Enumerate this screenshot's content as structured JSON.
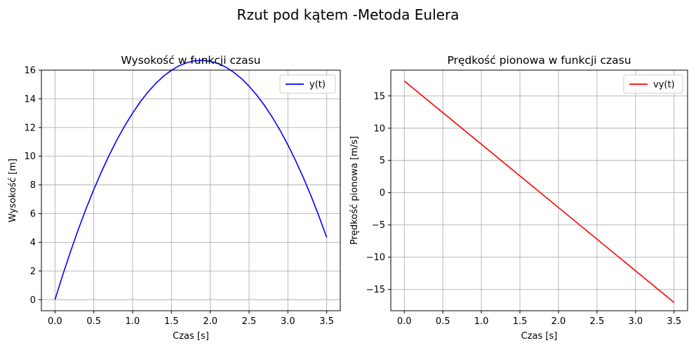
{
  "figure": {
    "suptitle": "Rzut pod kątem -Metoda Eulera"
  },
  "chart_data": [
    {
      "type": "line",
      "title": "Wysokość w funkcji czasu",
      "xlabel": "Czas [s]",
      "ylabel": "Wysokość [m]",
      "xlim": [
        -0.175,
        3.675
      ],
      "ylim": [
        -0.77,
        16.0
      ],
      "xticks": [
        0.0,
        0.5,
        1.0,
        1.5,
        2.0,
        2.5,
        3.0,
        3.5
      ],
      "xtick_labels": [
        "0.0",
        "0.5",
        "1.0",
        "1.5",
        "2.0",
        "2.5",
        "3.0",
        "3.5"
      ],
      "yticks": [
        0,
        2,
        4,
        6,
        8,
        10,
        12,
        14,
        16
      ],
      "ytick_labels": [
        "0",
        "2",
        "4",
        "6",
        "8",
        "10",
        "12",
        "14",
        "16"
      ],
      "grid": true,
      "legend_position": "top-right",
      "series": [
        {
          "name": "y(t)",
          "color": "#0000ff",
          "x": [
            0.0,
            0.1,
            0.2,
            0.3,
            0.4,
            0.5,
            0.6,
            0.7,
            0.8,
            0.9,
            1.0,
            1.1,
            1.2,
            1.3,
            1.4,
            1.5,
            1.6,
            1.7,
            1.8,
            1.9,
            2.0,
            2.1,
            2.2,
            2.3,
            2.4,
            2.5,
            2.6,
            2.7,
            2.8,
            2.9,
            3.0,
            3.1,
            3.2,
            3.3,
            3.4,
            3.5
          ],
          "values": [
            0.0,
            1.72,
            3.35,
            4.89,
            6.33,
            7.68,
            8.93,
            10.09,
            11.16,
            12.13,
            13.01,
            13.8,
            14.49,
            15.08,
            15.59,
            15.99,
            16.31,
            16.52,
            16.65,
            16.68,
            16.62,
            16.46,
            16.21,
            15.86,
            15.42,
            14.88,
            14.25,
            13.53,
            12.71,
            11.8,
            10.79,
            9.69,
            8.5,
            7.21,
            5.82,
            4.34
          ]
        }
      ]
    },
    {
      "type": "line",
      "title": "Prędkość pionowa w funkcji czasu",
      "xlabel": "Czas [s]",
      "ylabel": "Prędkość pionowa [m/s]",
      "xlim": [
        -0.175,
        3.675
      ],
      "ylim": [
        -18.3,
        19.0
      ],
      "xticks": [
        0.0,
        0.5,
        1.0,
        1.5,
        2.0,
        2.5,
        3.0,
        3.5
      ],
      "xtick_labels": [
        "0.0",
        "0.5",
        "1.0",
        "1.5",
        "2.0",
        "2.5",
        "3.0",
        "3.5"
      ],
      "yticks": [
        -15,
        -10,
        -5,
        0,
        5,
        10,
        15
      ],
      "ytick_labels": [
        "−15",
        "−10",
        "−5",
        "0",
        "5",
        "10",
        "15"
      ],
      "grid": true,
      "legend_position": "top-right",
      "series": [
        {
          "name": "vy(t)",
          "color": "#ff0000",
          "x": [
            0.0,
            3.5
          ],
          "values": [
            17.32,
            -17.02
          ]
        }
      ]
    }
  ]
}
